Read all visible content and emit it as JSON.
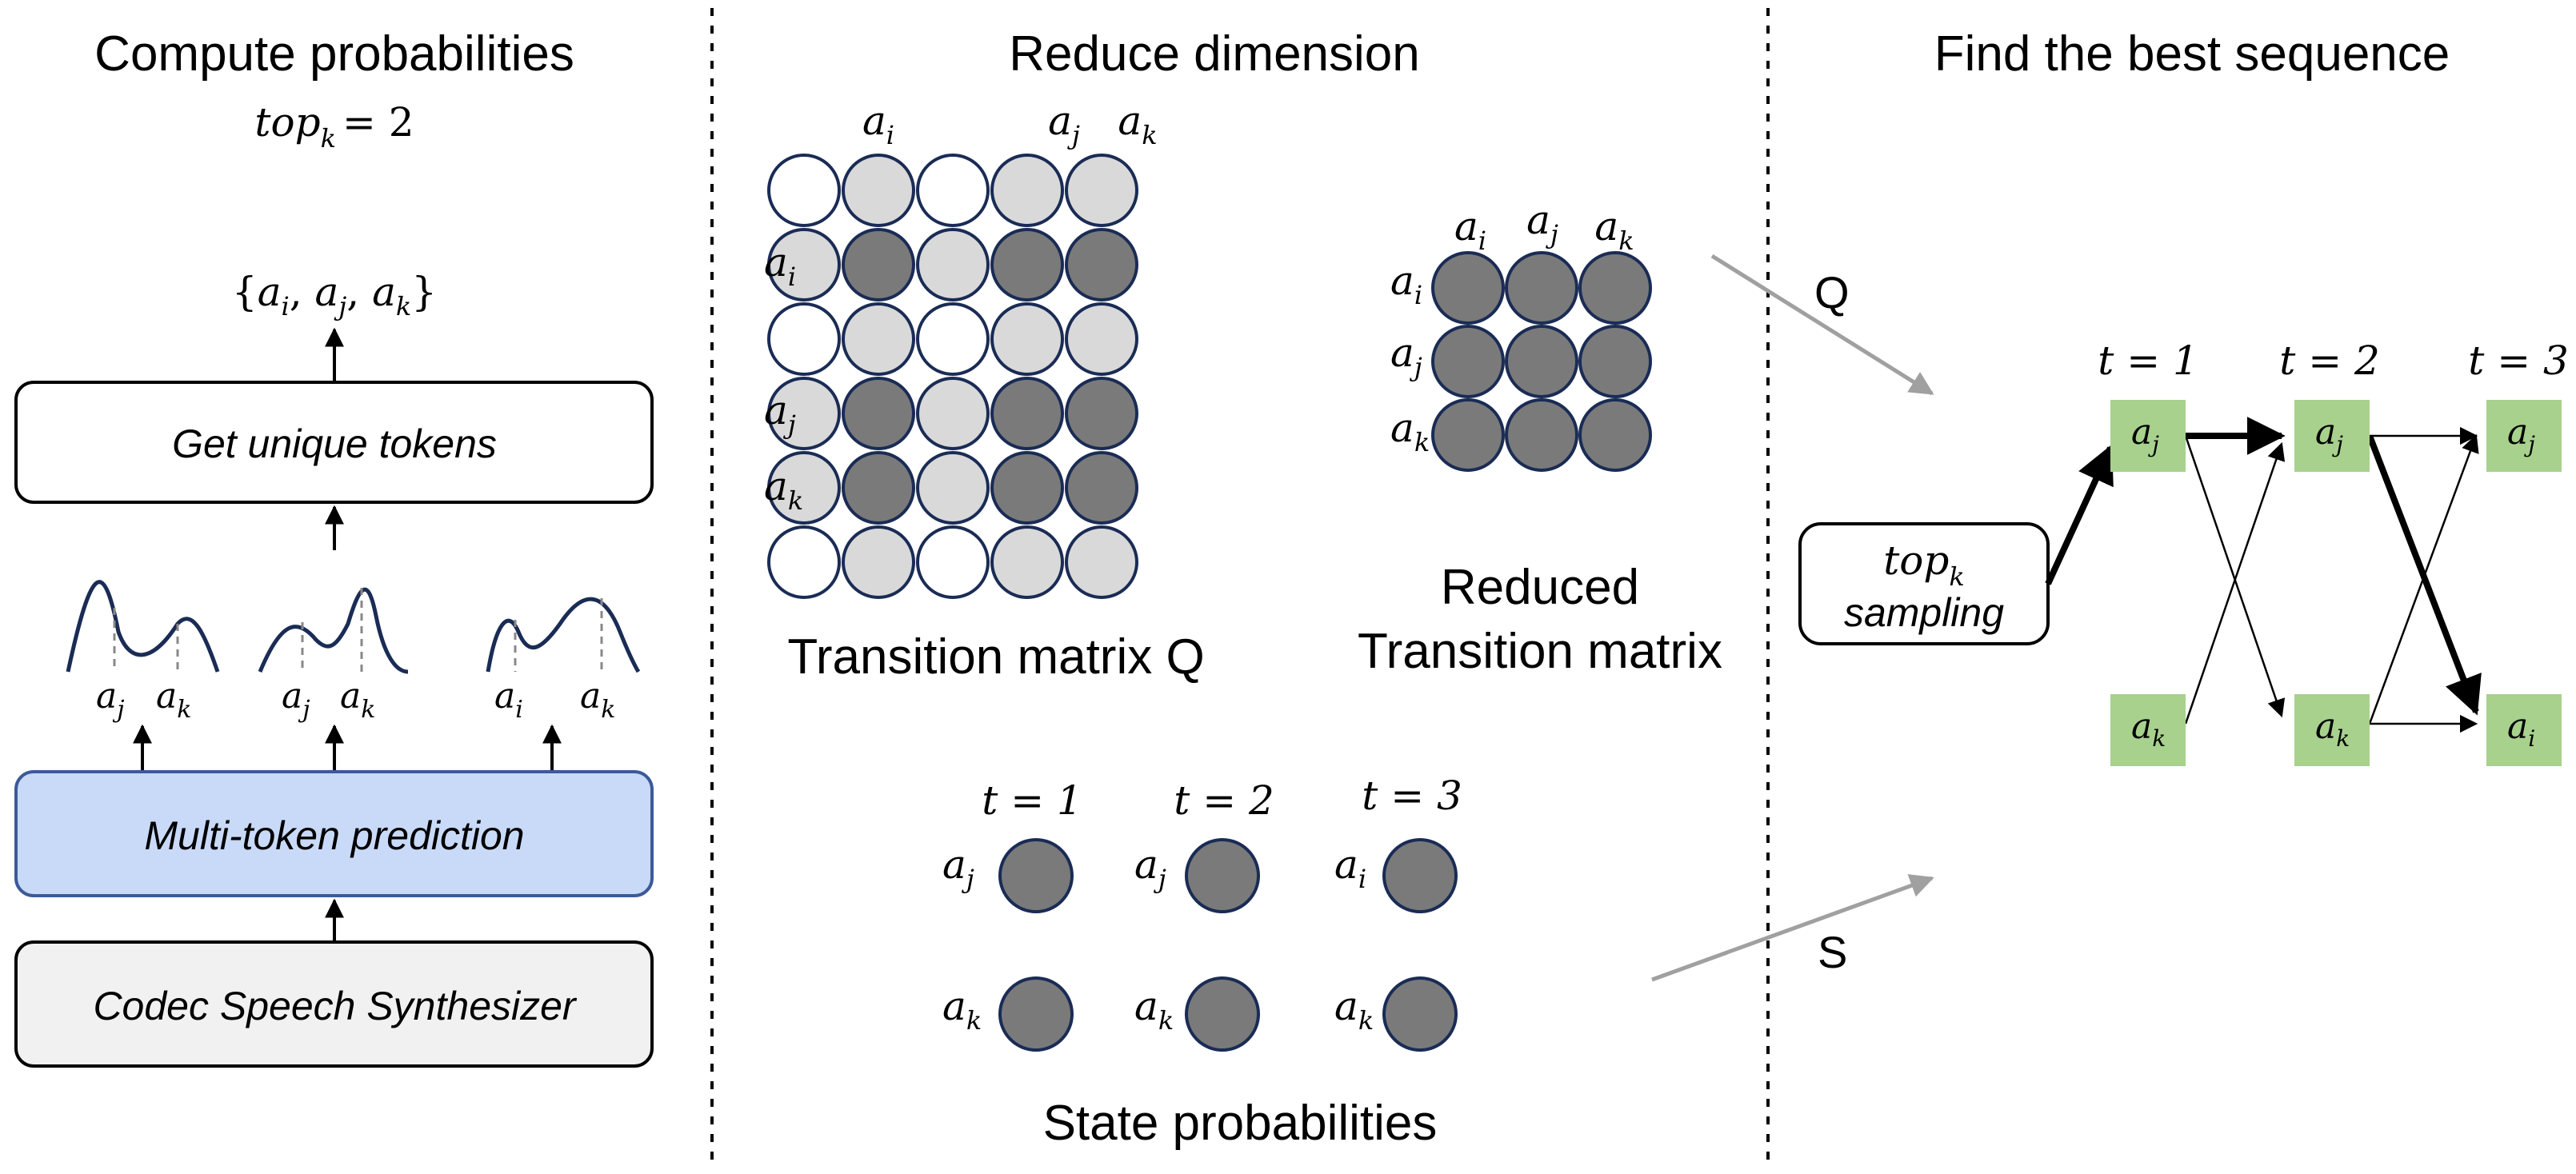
{
  "panels": {
    "left": {
      "title": "Compute probabilities",
      "topk_formula": "= 2",
      "unique_set": "{a_i, a_j, a_k}",
      "get_unique_label": "Get unique tokens",
      "mtp_label": "Multi-token prediction",
      "codec_label": "Codec Speech Synthesizer",
      "distributions": [
        {
          "peaks": [
            "j",
            "k"
          ]
        },
        {
          "peaks": [
            "j",
            "k"
          ]
        },
        {
          "peaks": [
            "i",
            "k"
          ]
        }
      ]
    },
    "middle": {
      "title": "Reduce dimension",
      "q_caption": "Transition matrix Q",
      "reduced_caption_line1": "Reduced",
      "reduced_caption_line2": "Transition matrix",
      "state_caption": "State probabilities",
      "q_col_labels": [
        "i",
        "j",
        "k"
      ],
      "q_row_labels": [
        "i",
        "j",
        "k"
      ],
      "reduced_labels": [
        "i",
        "j",
        "k"
      ],
      "state_times": [
        "t = 1",
        "t = 2",
        "t = 3"
      ],
      "state_top": [
        "j",
        "j",
        "i"
      ],
      "state_bottom": [
        "k",
        "k",
        "k"
      ]
    },
    "right": {
      "title": "Find the best sequence",
      "q_arrow_label": "Q",
      "s_arrow_label": "S",
      "sampling_line2": "sampling",
      "times": [
        "t = 1",
        "t = 2",
        "t = 3"
      ],
      "top_nodes": [
        "j",
        "j",
        "j"
      ],
      "bottom_nodes": [
        "k",
        "k",
        "i"
      ]
    }
  },
  "colors": {
    "mtp_fill": "#c9daf8",
    "mtp_stroke": "#3c5a99",
    "codec_fill": "#f1f1f1",
    "circle_dark": "#7a7a7a",
    "circle_light": "#d9d9d9",
    "circle_stroke": "#1a2c55",
    "node_green": "#a7d18d",
    "gray_arrow": "#a0a0a0",
    "curve": "#1a2c55"
  },
  "q_matrix_pattern": [
    [
      "w",
      "l",
      "w",
      "l",
      "l"
    ],
    [
      "l",
      "d",
      "l",
      "d",
      "d"
    ],
    [
      "w",
      "l",
      "w",
      "l",
      "l"
    ],
    [
      "l",
      "d",
      "l",
      "d",
      "d"
    ],
    [
      "l",
      "d",
      "l",
      "d",
      "d"
    ],
    [
      "w",
      "l",
      "w",
      "l",
      "l"
    ]
  ]
}
